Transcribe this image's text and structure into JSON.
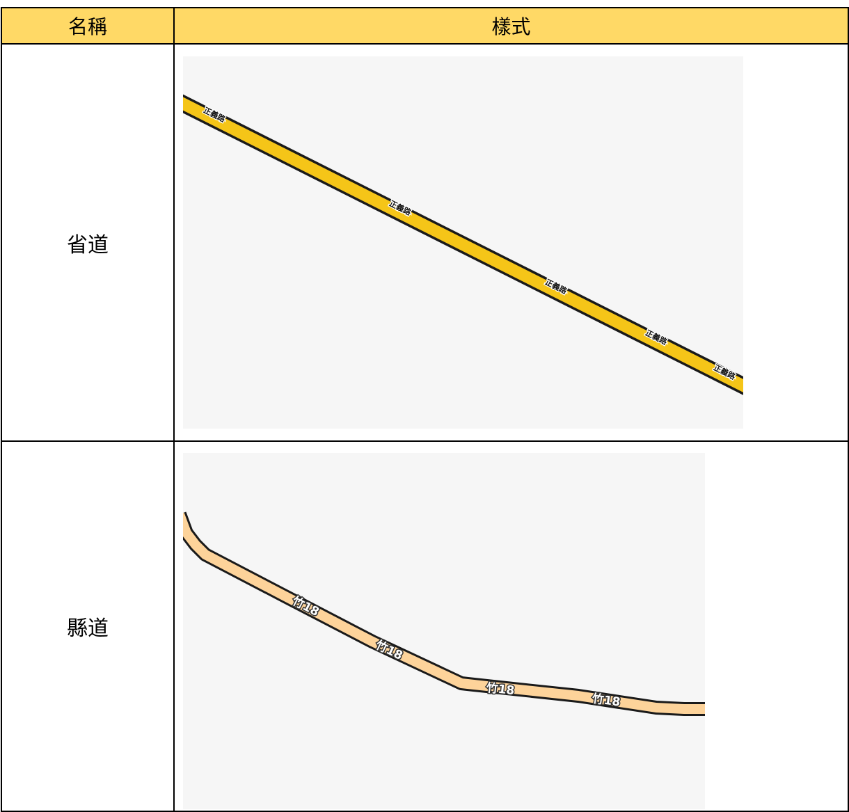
{
  "table": {
    "headers": {
      "name": "名稱",
      "style": "樣式"
    },
    "rows": [
      {
        "name": "省道",
        "sample": {
          "road_label": "正義路",
          "label_count": 5,
          "road_fill_color": "#f5c518",
          "casing_color": "#1a1a1a",
          "background_color": "#f6f6f6"
        }
      },
      {
        "name": "縣道",
        "sample": {
          "road_label": "竹18",
          "label_count": 4,
          "road_fill_color": "#fdd39a",
          "casing_color": "#1a1a1a",
          "background_color": "#f6f6f6"
        }
      }
    ]
  }
}
